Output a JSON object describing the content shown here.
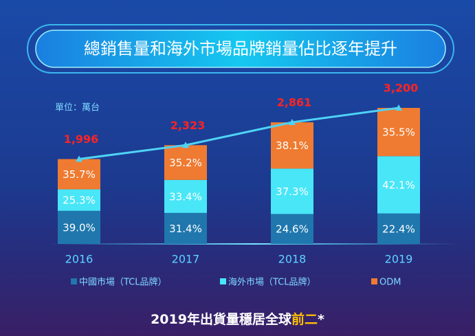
{
  "header": {
    "title": "總銷售量和海外市場品牌銷量佔比逐年提升"
  },
  "chart_data": {
    "type": "bar",
    "stacked": true,
    "unit_label": "單位：萬台",
    "categories": [
      "2016",
      "2017",
      "2018",
      "2019"
    ],
    "series": [
      {
        "name": "中國市場（TCL品牌）",
        "color": "#1f77ad",
        "values": [
          39.0,
          31.4,
          24.6,
          22.4
        ],
        "value_labels": [
          "39.0%",
          "31.4%",
          "24.6%",
          "22.4%"
        ]
      },
      {
        "name": "海外市場（TCL品牌）",
        "color": "#48e6f7",
        "values": [
          25.3,
          33.4,
          37.3,
          42.1
        ],
        "value_labels": [
          "25.3%",
          "33.4%",
          "37.3%",
          "42.1%"
        ]
      },
      {
        "name": "ODM",
        "color": "#ee7b31",
        "values": [
          35.7,
          35.2,
          38.1,
          35.5
        ],
        "value_labels": [
          "35.7%",
          "35.2%",
          "38.1%",
          "35.5%"
        ]
      }
    ],
    "totals": {
      "type": "line",
      "color": "#4fd3f6",
      "label_color": "#ff2323",
      "values": [
        1996,
        2323,
        2861,
        3200
      ],
      "value_labels": [
        "1,996",
        "2,323",
        "2,861",
        "3,200"
      ]
    }
  },
  "footer": {
    "text": "2019年出貨量穩居全球",
    "highlight": "前二",
    "suffix": "*"
  }
}
